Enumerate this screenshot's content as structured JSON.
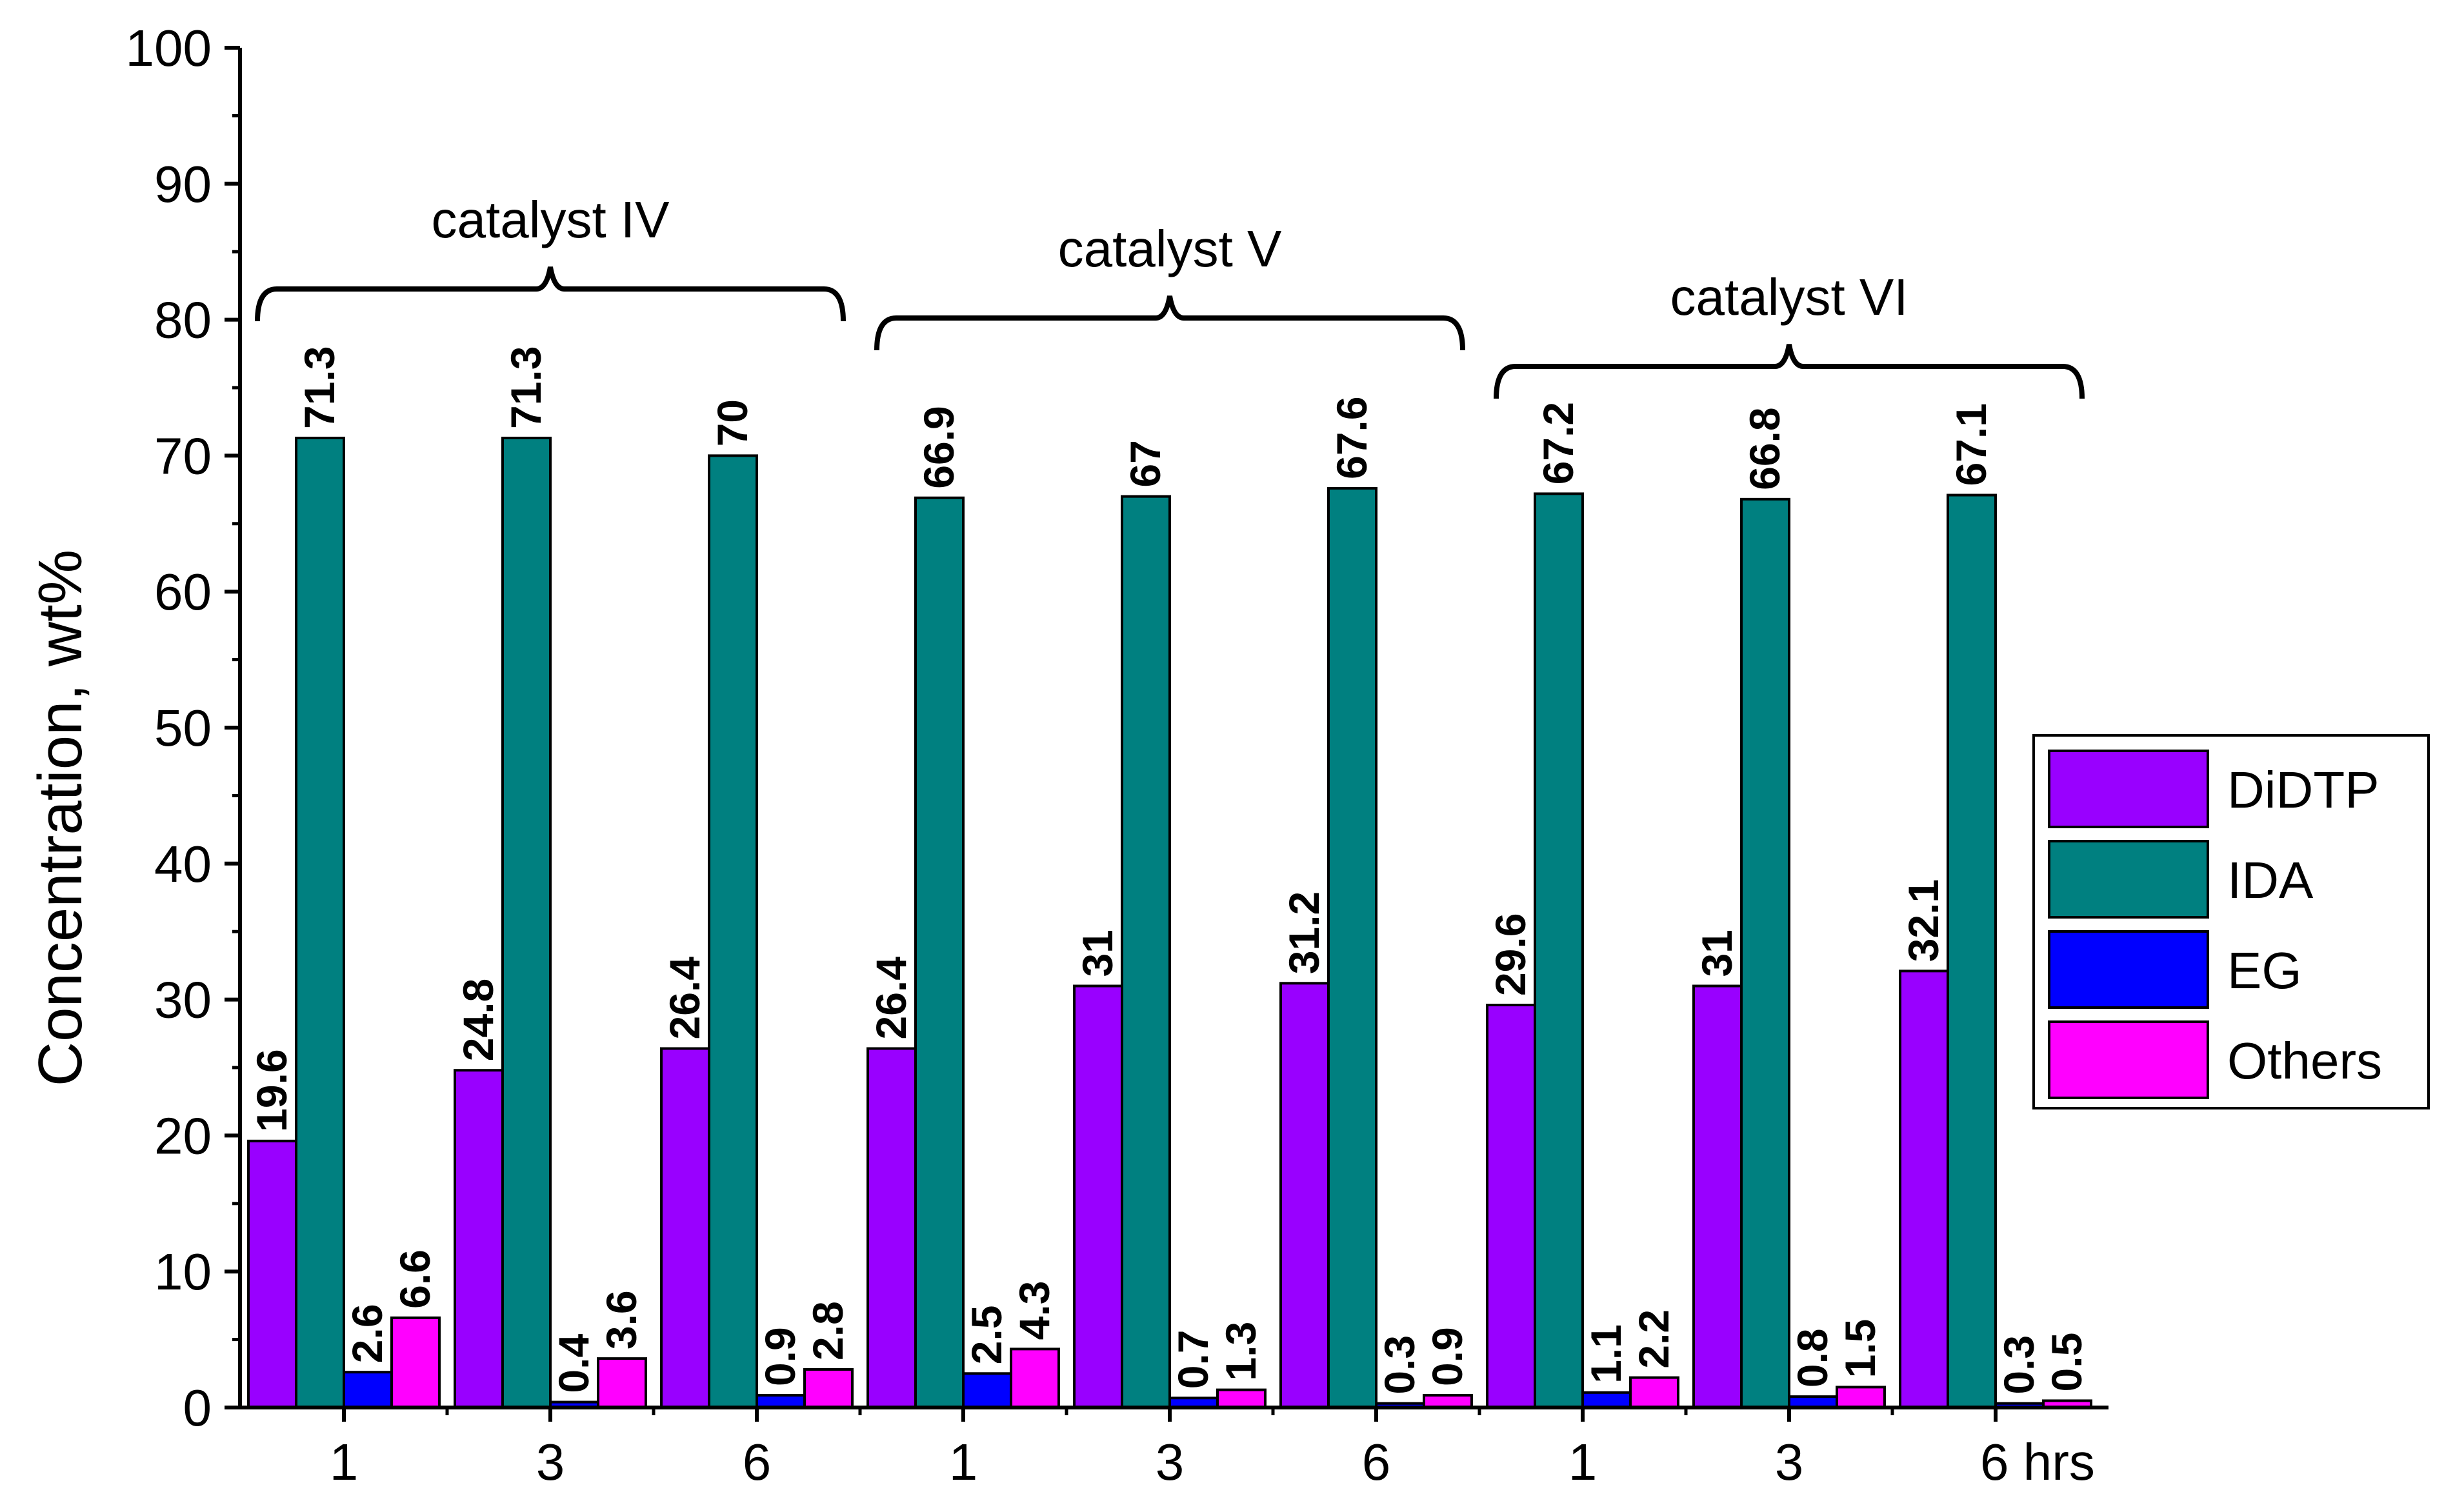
{
  "chart_data": {
    "type": "bar",
    "ylabel": "Concentration, wt%",
    "ylim": [
      0,
      100
    ],
    "yticks": [
      0,
      10,
      20,
      30,
      40,
      50,
      60,
      70,
      80,
      90,
      100
    ],
    "grid": false,
    "legend": "right",
    "categories": [
      "1",
      "3",
      "6",
      "1",
      "3",
      "6",
      "1",
      "3",
      "6 hrs"
    ],
    "groups": [
      {
        "label": "catalyst IV",
        "start": 0,
        "end": 2
      },
      {
        "label": "catalyst V",
        "start": 3,
        "end": 5
      },
      {
        "label": "catalyst VI",
        "start": 6,
        "end": 8
      }
    ],
    "series": [
      {
        "name": "DiDTP",
        "color": "#9900FF",
        "values": [
          19.6,
          24.8,
          26.4,
          26.4,
          31,
          31.2,
          29.6,
          31,
          32.1
        ]
      },
      {
        "name": "IDA",
        "color": "#008080",
        "values": [
          71.3,
          71.3,
          70,
          66.9,
          67,
          67.6,
          67.2,
          66.8,
          67.1
        ]
      },
      {
        "name": "EG",
        "color": "#0000FF",
        "values": [
          2.6,
          0.4,
          0.9,
          2.5,
          0.7,
          0.3,
          1.1,
          0.8,
          0.3
        ]
      },
      {
        "name": "Others",
        "color": "#FF00FF",
        "values": [
          6.6,
          3.6,
          2.8,
          4.3,
          1.3,
          0.9,
          2.2,
          1.5,
          0.5
        ]
      }
    ]
  }
}
